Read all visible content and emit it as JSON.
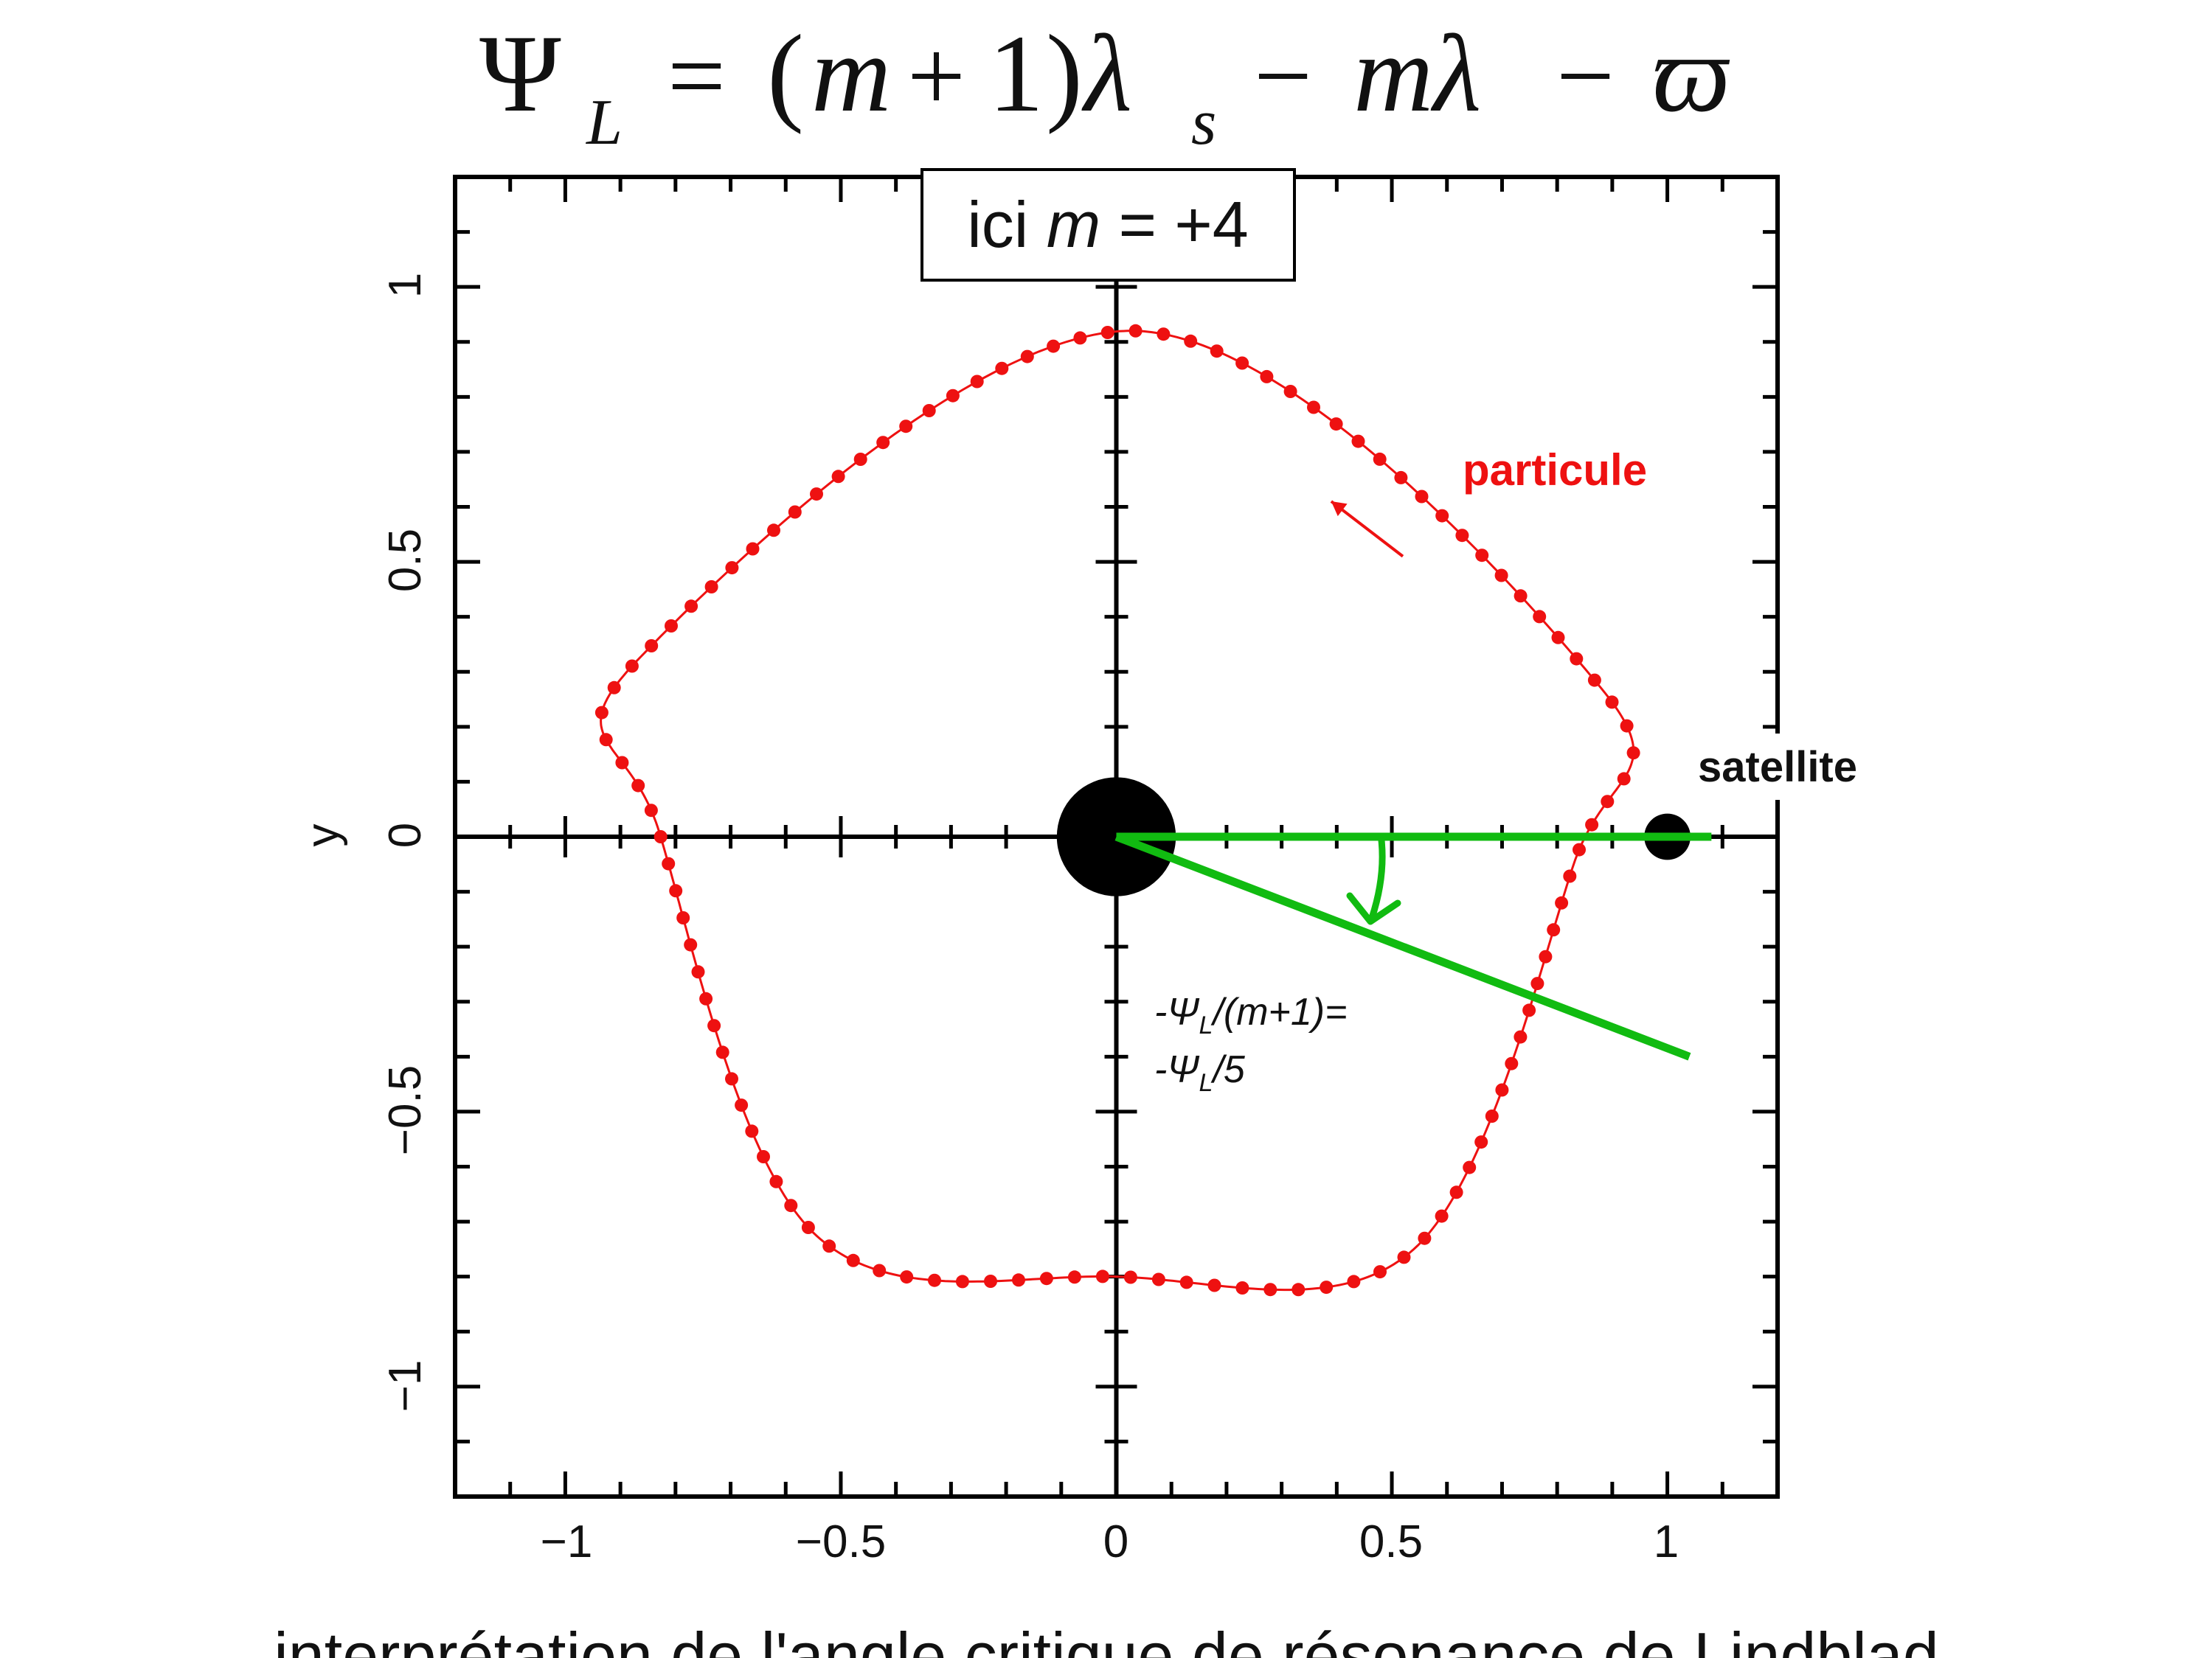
{
  "formula": {
    "psi": "Ψ",
    "psi_sub": "L",
    "equals": "=",
    "paren_open": "(",
    "m": "m",
    "plus": "+",
    "one": "1",
    "paren_close": ")",
    "lambda": "λ",
    "lambda_sub": "s",
    "minus": "−",
    "m_lambda": "mλ",
    "minus2": "−",
    "varpi": "ϖ"
  },
  "badge": {
    "prefix": "ici",
    "var": "m",
    "suffix": "= +4"
  },
  "labels": {
    "particle": "particule",
    "satellite": "satellite",
    "angle_line1_prefix": "-Ψ",
    "angle_line1_sub": "L",
    "angle_line1_suffix": "/(m+1)=",
    "angle_line2_prefix": "-Ψ",
    "angle_line2_sub": "L",
    "angle_line2_suffix": "/5"
  },
  "caption": "interprétation de l'angle critique de résonance de Lindblad",
  "axes": {
    "ylabel": "y",
    "xticks": [
      "−1",
      "−0.5",
      "0",
      "0.5",
      "1"
    ],
    "yticks": [
      "−1",
      "−0.5",
      "0",
      "0.5",
      "1"
    ],
    "xlim": [
      -1.2,
      1.2
    ],
    "ylim": [
      -1.2,
      1.2
    ]
  },
  "colors": {
    "orbit": "#ee1111",
    "angle": "#11bb11",
    "axis": "#000000",
    "particle_label": "#ee1111"
  },
  "chart_data": {
    "type": "scatter",
    "xlim": [
      -1.2,
      1.2
    ],
    "ylim": [
      -1.2,
      1.2
    ],
    "ylabel": "y",
    "orbit_vertices": [
      [
        0.035,
        0.92
      ],
      [
        0.88,
        0.27
      ],
      [
        0.83,
        -0.05
      ],
      [
        0.54,
        -0.75
      ],
      [
        0.0,
        -0.8
      ],
      [
        -0.55,
        -0.72
      ],
      [
        -0.83,
        0.01
      ],
      [
        -0.87,
        0.32
      ]
    ],
    "orbit_samples": 110,
    "planet": {
      "x": 0.0,
      "y": 0.0,
      "r": 0.108
    },
    "satellite": {
      "x": 1.0,
      "y": 0.0,
      "r": 0.042
    },
    "reference_line": {
      "from": [
        0.0,
        0.0
      ],
      "to": [
        1.08,
        0.0
      ]
    },
    "angle_line": {
      "from": [
        0.0,
        0.0
      ],
      "to": [
        1.04,
        -0.4
      ]
    },
    "motion_arrow": {
      "from": [
        0.52,
        0.51
      ],
      "to": [
        0.39,
        0.61
      ]
    }
  }
}
